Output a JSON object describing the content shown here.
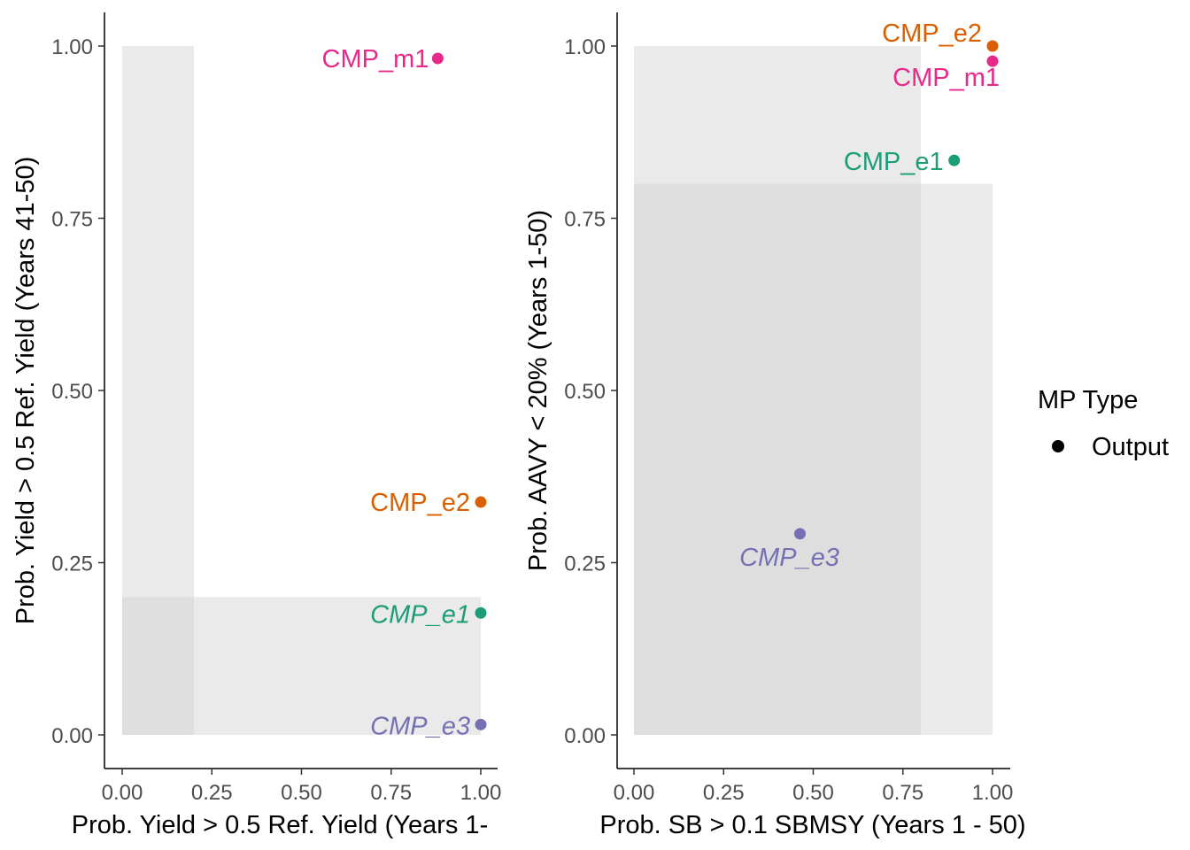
{
  "chart_data": [
    {
      "type": "scatter",
      "xlabel": "Prob. Yield > 0.5 Ref. Yield (Years 1-",
      "ylabel": "Prob. Yield > 0.5 Ref. Yield (Years 41-50)",
      "xlim": [
        0,
        1
      ],
      "ylim": [
        0,
        1
      ],
      "xticks": [
        "0.00",
        "0.25",
        "0.50",
        "0.75",
        "1.00"
      ],
      "yticks": [
        "0.00",
        "0.25",
        "0.50",
        "0.75",
        "1.00"
      ],
      "grid": false,
      "threshold_regions": [
        {
          "x": [
            0,
            0.2
          ],
          "y": [
            0,
            1
          ]
        },
        {
          "x": [
            0,
            1
          ],
          "y": [
            0,
            0.2
          ]
        }
      ],
      "points": [
        {
          "label": "CMP_m1",
          "x": 0.88,
          "y": 0.982,
          "color": "#E7298A",
          "italic": false
        },
        {
          "label": "CMP_e2",
          "x": 1.0,
          "y": 0.338,
          "color": "#D95F02",
          "italic": false
        },
        {
          "label": "CMP_e1",
          "x": 1.0,
          "y": 0.177,
          "color": "#1B9E77",
          "italic": true
        },
        {
          "label": "CMP_e3",
          "x": 1.0,
          "y": 0.015,
          "color": "#7570B3",
          "italic": true
        }
      ]
    },
    {
      "type": "scatter",
      "xlabel": "Prob. SB > 0.1 SBMSY (Years 1 - 50)",
      "ylabel": "Prob. AAVY < 20% (Years 1-50)",
      "xlim": [
        0,
        1
      ],
      "ylim": [
        0,
        1
      ],
      "xticks": [
        "0.00",
        "0.25",
        "0.50",
        "0.75",
        "1.00"
      ],
      "yticks": [
        "0.00",
        "0.25",
        "0.50",
        "0.75",
        "1.00"
      ],
      "grid": false,
      "threshold_regions": [
        {
          "x": [
            0,
            0.8
          ],
          "y": [
            0,
            1
          ]
        },
        {
          "x": [
            0,
            1
          ],
          "y": [
            0,
            0.8
          ]
        }
      ],
      "points": [
        {
          "label": "CMP_e2",
          "x": 1.0,
          "y": 1.0,
          "color": "#D95F02",
          "italic": false
        },
        {
          "label": "CMP_m1",
          "x": 1.0,
          "y": 0.978,
          "color": "#E7298A",
          "italic": false
        },
        {
          "label": "CMP_e1",
          "x": 0.893,
          "y": 0.834,
          "color": "#1B9E77",
          "italic": false
        },
        {
          "label": "CMP_e3",
          "x": 0.463,
          "y": 0.292,
          "color": "#7570B3",
          "italic": true
        }
      ]
    }
  ],
  "legend": {
    "title": "MP Type",
    "items": [
      {
        "label": "Output",
        "shape": "filled-circle",
        "color": "#000000"
      }
    ]
  }
}
